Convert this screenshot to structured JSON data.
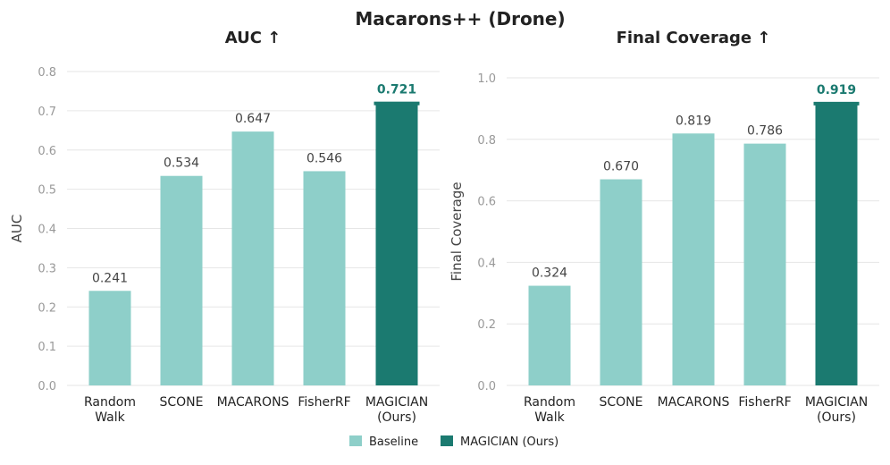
{
  "colors": {
    "baseline": "#8ecfc9",
    "ours": "#1b7a70",
    "grid": "#e6e6e6",
    "tick": "#999999",
    "label": "#444444"
  },
  "chart_data": {
    "suptitle": "Macarons++ (Drone)",
    "legend": {
      "placement": "bottom-center",
      "entries": [
        "Baseline",
        "MAGICIAN (Ours)"
      ]
    },
    "charts": [
      {
        "type": "bar",
        "title": "AUC ↑",
        "ylabel": "AUC",
        "xlabel": "",
        "ylim": [
          0,
          0.8
        ],
        "yticks": [
          "0.0",
          "0.1",
          "0.2",
          "0.3",
          "0.4",
          "0.5",
          "0.6",
          "0.7",
          "0.8"
        ],
        "ytick_values": [
          0,
          0.1,
          0.2,
          0.3,
          0.4,
          0.5,
          0.6,
          0.7,
          0.8
        ],
        "grid": true,
        "categories": [
          "Random\nWalk",
          "SCONE",
          "MACARONS",
          "FisherRF",
          "MAGICIAN\n(Ours)"
        ],
        "values": [
          0.241,
          0.534,
          0.647,
          0.546,
          0.721
        ],
        "labels": [
          "0.241",
          "0.534",
          "0.647",
          "0.546",
          "0.721"
        ],
        "is_ours": [
          false,
          false,
          false,
          false,
          true
        ]
      },
      {
        "type": "bar",
        "title": "Final Coverage ↑",
        "ylabel": "Final Coverage",
        "xlabel": "",
        "ylim": [
          0,
          1.0
        ],
        "yticks": [
          "0.0",
          "0.2",
          "0.4",
          "0.6",
          "0.8",
          "1.0"
        ],
        "ytick_values": [
          0,
          0.2,
          0.4,
          0.6,
          0.8,
          1.0
        ],
        "grid": true,
        "categories": [
          "Random\nWalk",
          "SCONE",
          "MACARONS",
          "FisherRF",
          "MAGICIAN\n(Ours)"
        ],
        "values": [
          0.324,
          0.67,
          0.819,
          0.786,
          0.919
        ],
        "labels": [
          "0.324",
          "0.670",
          "0.819",
          "0.786",
          "0.919"
        ],
        "is_ours": [
          false,
          false,
          false,
          false,
          true
        ]
      }
    ]
  }
}
